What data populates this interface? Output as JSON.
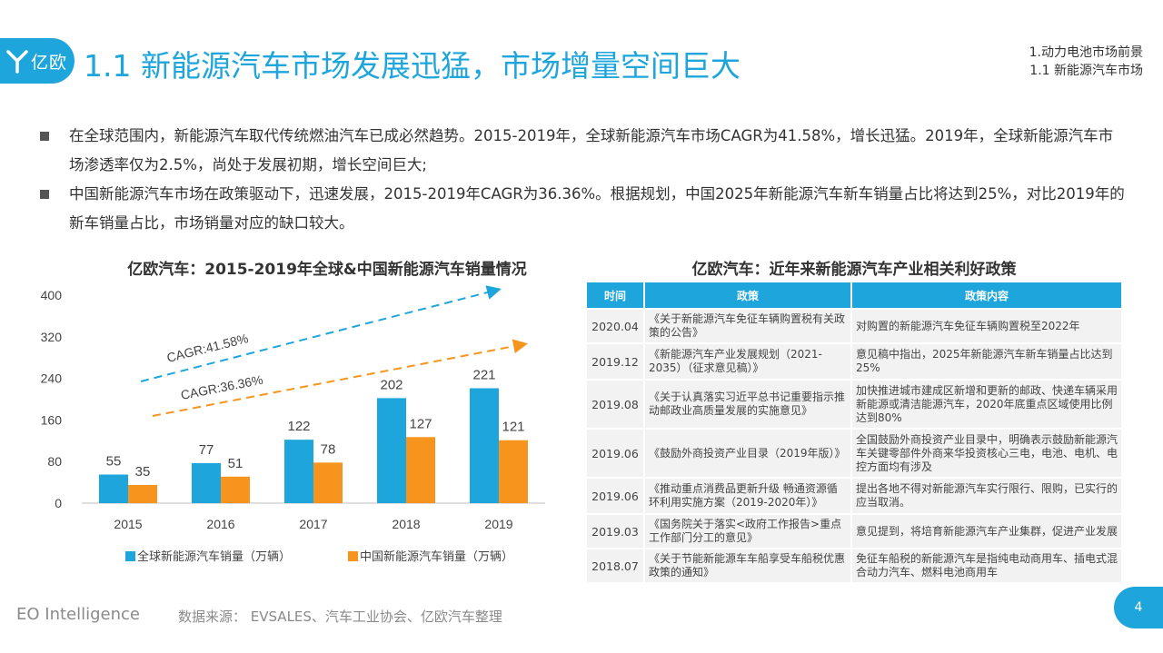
{
  "header": {
    "logo_text": "亿欧",
    "title": "1.1 新能源汽车市场发展迅猛，市场增量空间巨大",
    "breadcrumb_1": "1.动力电池市场前景",
    "breadcrumb_2": "1.1 新能源汽车市场"
  },
  "bullets": [
    "在全球范围内，新能源汽车取代传统燃油汽车已成必然趋势。2015-2019年，全球新能源汽车市场CAGR为41.58%，增长迅猛。2019年，全球新能源汽车市场渗透率仅为2.5%，尚处于发展初期，增长空间巨大;",
    "中国新能源汽车市场在政策驱动下，迅速发展，2015-2019年CAGR为36.36%。根据规划，中国2025年新能源汽车新车销量占比将达到25%，对比2019年的新车销量占比，市场销量对应的缺口较大。"
  ],
  "chart_data": {
    "type": "bar",
    "title": "亿欧汽车：2015-2019年全球&中国新能源汽车销量情况",
    "categories": [
      "2015",
      "2016",
      "2017",
      "2018",
      "2019"
    ],
    "series": [
      {
        "name": "全球新能源汽车销量（万辆）",
        "values": [
          55,
          77,
          122,
          202,
          221
        ],
        "color": "#1ea6dc"
      },
      {
        "name": "中国新能源汽车销量（万辆）",
        "values": [
          35,
          51,
          78,
          127,
          121
        ],
        "color": "#f7941d"
      }
    ],
    "ylim": [
      0,
      400
    ],
    "yticks": [
      0,
      80,
      160,
      240,
      320,
      400
    ],
    "annotations": [
      {
        "text": "CAGR:41.58%",
        "color": "#1ea6dc"
      },
      {
        "text": "CAGR:36.36%",
        "color": "#f7941d"
      }
    ],
    "legend": "bottom",
    "grid": false
  },
  "table": {
    "title": "亿欧汽车：近年来新能源汽车产业相关利好政策",
    "headers": [
      "时间",
      "政策",
      "政策内容"
    ],
    "rows": [
      [
        "2020.04",
        "《关于新能源汽车免征车辆购置税有关政策的公告》",
        "对购置的新能源汽车免征车辆购置税至2022年"
      ],
      [
        "2019.12",
        "《新能源汽车产业发展规划（2021-2035）（征求意见稿）》",
        "意见稿中指出，2025年新能源汽车新车销量占比达到25%"
      ],
      [
        "2019.08",
        "《关于认真落实习近平总书记重要指示推动邮政业高质量发展的实施意见》",
        "加快推进城市建成区新增和更新的邮政、快递车辆采用新能源或清洁能源汽车，2020年底重点区域使用比例达到80%"
      ],
      [
        "2019.06",
        "《鼓励外商投资产业目录（2019年版）》",
        "全国鼓励外商投资产业目录中，明确表示鼓励新能源汽车关键零部件外商来华投资核心三电，电池、电机、电控方面均有涉及"
      ],
      [
        "2019.06",
        "《推动重点消费品更新升级 畅通资源循环利用实施方案（2019-2020年）》",
        "提出各地不得对新能源汽车实行限行、限购，已实行的应当取消。"
      ],
      [
        "2019.03",
        "《国务院关于落实<政府工作报告>重点工作部门分工的意见》",
        "意见提到，将培育新能源汽车产业集群，促进产业发展"
      ],
      [
        "2018.07",
        "《关于节能新能源车车船享受车船税优惠政策的通知》",
        "免征车船税的新能源汽车是指纯电动商用车、插电式混合动力汽车、燃料电池商用车"
      ]
    ]
  },
  "footer": {
    "brand": "EO Intelligence",
    "source": "数据来源： EVSALES、汽车工业协会、亿欧汽车整理",
    "page": "4"
  }
}
